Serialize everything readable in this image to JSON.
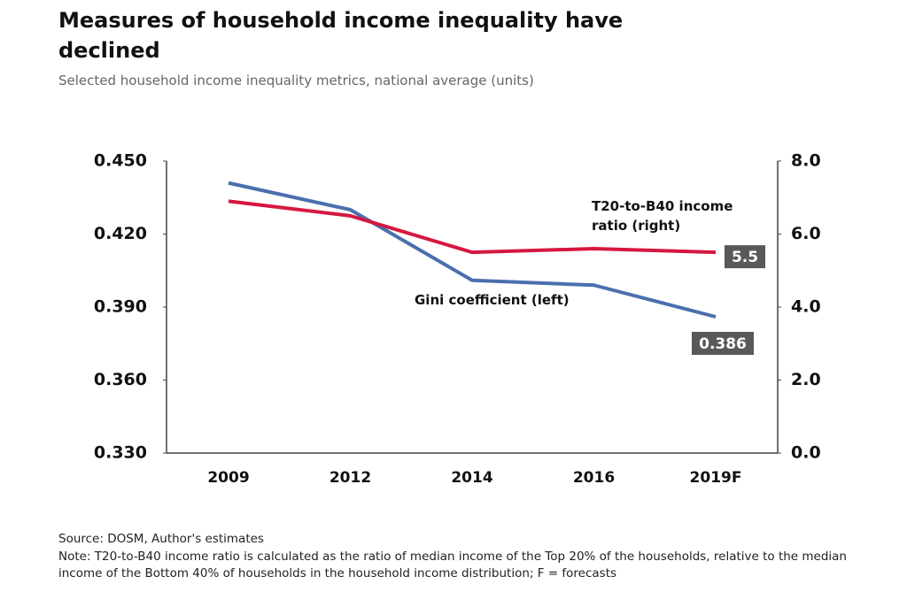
{
  "chart_data": {
    "type": "line",
    "title": "Measures of household income inequality have declined",
    "subtitle": "Selected household income inequality metrics, national average (units)",
    "categories": [
      "2009",
      "2012",
      "2014",
      "2016",
      "2019F"
    ],
    "series": [
      {
        "name": "Gini coefficient (left)",
        "color": "#4a6fae",
        "values": [
          0.441,
          0.43,
          0.401,
          0.399,
          0.386
        ]
      },
      {
        "name": "T20-to-B40 income ratio (right)",
        "color": "#d6173f",
        "axis": "y2",
        "values": [
          6.9,
          6.5,
          5.5,
          5.6,
          5.5
        ]
      }
    ],
    "ylim": [
      0.33,
      0.45
    ],
    "yticks": [
      {
        "value": 0.33,
        "label": "0.330"
      },
      {
        "value": 0.36,
        "label": "0.360"
      },
      {
        "value": 0.39,
        "label": "0.390"
      },
      {
        "value": 0.42,
        "label": "0.420"
      },
      {
        "value": 0.45,
        "label": "0.450"
      }
    ],
    "y2lim": [
      0,
      8
    ],
    "y2ticks": [
      {
        "value": 0,
        "label": "0.0"
      },
      {
        "value": 2,
        "label": "2.0"
      },
      {
        "value": 4,
        "label": "4.0"
      },
      {
        "value": 6,
        "label": "6.0"
      },
      {
        "value": 8,
        "label": "8.0"
      }
    ],
    "source": "Source: DOSM, Author's estimates",
    "note": "Note: T20-to-B40 income ratio is calculated as the ratio of median income of the Top 20% of the households, relative to the median income of the Bottom 40% of households in the household income distribution; F = forecasts"
  }
}
